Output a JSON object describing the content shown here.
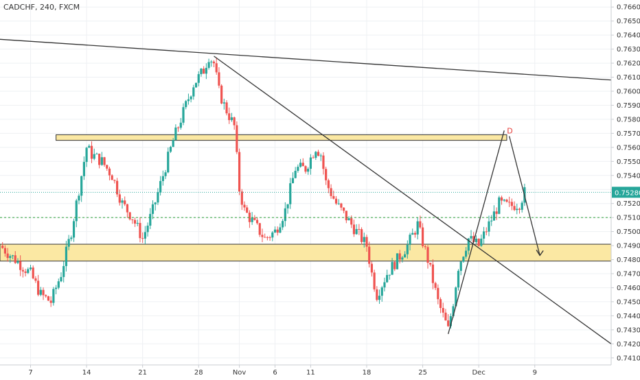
{
  "header": {
    "symbol_label": "CADCHF, 240, FXCM"
  },
  "colors": {
    "up": "#26a69a",
    "down": "#ef5350",
    "zone_fill": "#fbe8a3",
    "zone_stroke": "#333333",
    "grid": "#eef0f3",
    "price_line": "#26a69a",
    "dotted_level": "#2e9e3a",
    "trendline": "#333333",
    "axis_text": "#333333",
    "point_label": "#e53935"
  },
  "chart_data": {
    "type": "candlestick",
    "title": "CADCHF, 240, FXCM",
    "y_ticks": [
      "0.74100",
      "0.74200",
      "0.74300",
      "0.74400",
      "0.74500",
      "0.74600",
      "0.74700",
      "0.74800",
      "0.74900",
      "0.75000",
      "0.75100",
      "0.75200",
      "0.75300",
      "0.75400",
      "0.75500",
      "0.75600",
      "0.75700",
      "0.75800",
      "0.75900",
      "0.76000",
      "0.76100",
      "0.76200",
      "0.76300",
      "0.76400",
      "0.76500",
      "0.76600"
    ],
    "x_ticks": [
      "7",
      "14",
      "21",
      "28",
      "Nov",
      "6",
      "11",
      "18",
      "25",
      "Dec",
      "9"
    ],
    "ylim": [
      0.7405,
      0.7665
    ],
    "last_price": "0.75280",
    "last_price_value": 0.7528,
    "dotted_level_value": 0.751,
    "resistance_zone": [
      0.7565,
      0.7569
    ],
    "support_zone": [
      0.7479,
      0.7491
    ],
    "point_label": "D",
    "price_path": [
      [
        0,
        0.749
      ],
      [
        3,
        0.748
      ],
      [
        6,
        0.747
      ],
      [
        8,
        0.7455
      ],
      [
        10,
        0.745
      ],
      [
        12,
        0.747
      ],
      [
        14,
        0.75
      ],
      [
        16,
        0.754
      ],
      [
        17,
        0.756
      ],
      [
        18,
        0.7555
      ],
      [
        20,
        0.755
      ],
      [
        22,
        0.754
      ],
      [
        24,
        0.752
      ],
      [
        26,
        0.751
      ],
      [
        28,
        0.7495
      ],
      [
        30,
        0.7515
      ],
      [
        32,
        0.754
      ],
      [
        34,
        0.7565
      ],
      [
        36,
        0.7585
      ],
      [
        38,
        0.7605
      ],
      [
        40,
        0.7615
      ],
      [
        41,
        0.7625
      ],
      [
        42,
        0.762
      ],
      [
        43,
        0.76
      ],
      [
        44,
        0.759
      ],
      [
        46,
        0.7575
      ],
      [
        47,
        0.753
      ],
      [
        48,
        0.7515
      ],
      [
        50,
        0.7505
      ],
      [
        52,
        0.7495
      ],
      [
        54,
        0.75
      ],
      [
        56,
        0.7515
      ],
      [
        58,
        0.7545
      ],
      [
        60,
        0.7545
      ],
      [
        62,
        0.756
      ],
      [
        63,
        0.7555
      ],
      [
        64,
        0.7535
      ],
      [
        66,
        0.752
      ],
      [
        68,
        0.751
      ],
      [
        70,
        0.75
      ],
      [
        72,
        0.749
      ],
      [
        73,
        0.747
      ],
      [
        74,
        0.7455
      ],
      [
        76,
        0.747
      ],
      [
        78,
        0.748
      ],
      [
        80,
        0.749
      ],
      [
        82,
        0.7505
      ],
      [
        84,
        0.748
      ],
      [
        86,
        0.745
      ],
      [
        88,
        0.743
      ],
      [
        89,
        0.745
      ],
      [
        90,
        0.7475
      ],
      [
        92,
        0.7495
      ],
      [
        94,
        0.749
      ],
      [
        96,
        0.7505
      ],
      [
        98,
        0.752
      ],
      [
        100,
        0.7518
      ],
      [
        102,
        0.752
      ],
      [
        103,
        0.7528
      ]
    ],
    "trendlines": [
      {
        "from": [
          0,
          0.7637
        ],
        "to": [
          120,
          0.7608
        ]
      },
      {
        "from": [
          42,
          0.7625
        ],
        "to": [
          120,
          0.742
        ]
      },
      {
        "from": [
          88,
          0.7427
        ],
        "to": [
          99,
          0.7572
        ]
      },
      {
        "from": [
          100,
          0.7568
        ],
        "to": [
          106,
          0.7483
        ]
      }
    ]
  }
}
